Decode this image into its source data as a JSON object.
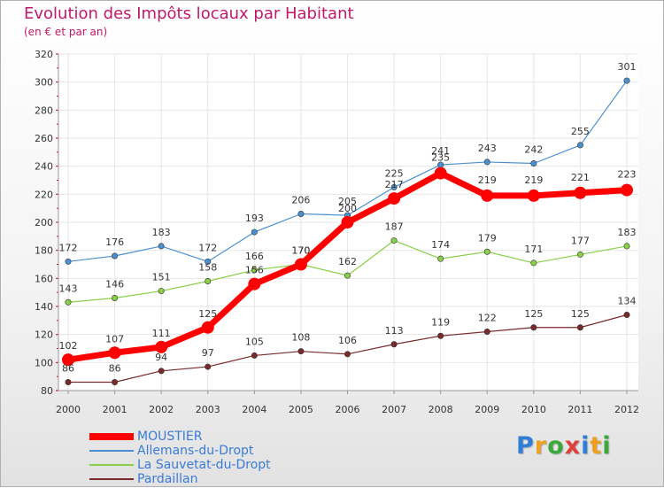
{
  "title": "Evolution des Impôts locaux par Habitant",
  "subtitle": "(en € et par an)",
  "logo": {
    "text": "Proxiti",
    "colors": [
      "#2f7fd8",
      "#f0a020",
      "#3aa83a",
      "#e0403a",
      "#2f7fd8",
      "#f0a020",
      "#3aa83a"
    ]
  },
  "chart_data": {
    "type": "line",
    "title": "Evolution des Impôts locaux par Habitant",
    "subtitle": "(en € et par an)",
    "xlabel": "",
    "ylabel": "",
    "x": [
      2000,
      2001,
      2002,
      2003,
      2004,
      2005,
      2006,
      2007,
      2008,
      2009,
      2010,
      2011,
      2012
    ],
    "ylim": [
      80,
      320
    ],
    "yticks": [
      80,
      100,
      120,
      140,
      160,
      180,
      200,
      220,
      240,
      260,
      280,
      300,
      320
    ],
    "grid": true,
    "legend_position": "bottom-left",
    "series": [
      {
        "name": "MOUSTIER",
        "color": "#ff0000",
        "emphasis": true,
        "values": [
          102,
          107,
          111,
          125,
          156,
          170,
          200,
          217,
          235,
          219,
          219,
          221,
          223
        ]
      },
      {
        "name": "Allemans-du-Dropt",
        "color": "#4a90d0",
        "emphasis": false,
        "values": [
          172,
          176,
          183,
          172,
          193,
          206,
          205,
          225,
          241,
          243,
          242,
          255,
          301
        ]
      },
      {
        "name": "La Sauvetat-du-Dropt",
        "color": "#88d048",
        "emphasis": false,
        "values": [
          143,
          146,
          151,
          158,
          166,
          170,
          162,
          187,
          174,
          179,
          171,
          177,
          183
        ]
      },
      {
        "name": "Pardaillan",
        "color": "#7a2a2a",
        "emphasis": false,
        "values": [
          86,
          86,
          94,
          97,
          105,
          108,
          106,
          113,
          119,
          122,
          125,
          125,
          134
        ]
      }
    ]
  }
}
